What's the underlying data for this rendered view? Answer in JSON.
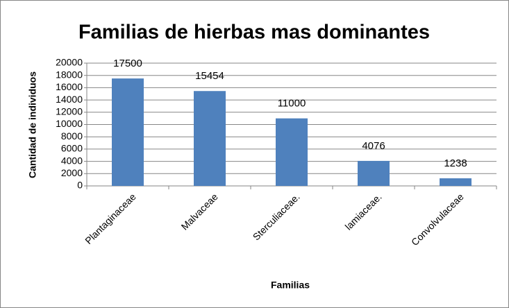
{
  "chart_data": {
    "type": "bar",
    "title": "Familias de hierbas mas dominantes",
    "x_label": "Familias",
    "y_label": "Cantidad de individuos",
    "categories": [
      "Plantaginaceae",
      "Malvaceae",
      "Sterculiaceae.",
      "lamiaceae.",
      "Convolvulaceae"
    ],
    "values": [
      17500,
      15454,
      11000,
      4076,
      1238
    ],
    "color": "#4f81bd",
    "ylim": [
      0,
      20000
    ],
    "yticks": [
      0,
      2000,
      4000,
      6000,
      8000,
      10000,
      12000,
      14000,
      16000,
      18000,
      20000
    ],
    "grid": true
  }
}
